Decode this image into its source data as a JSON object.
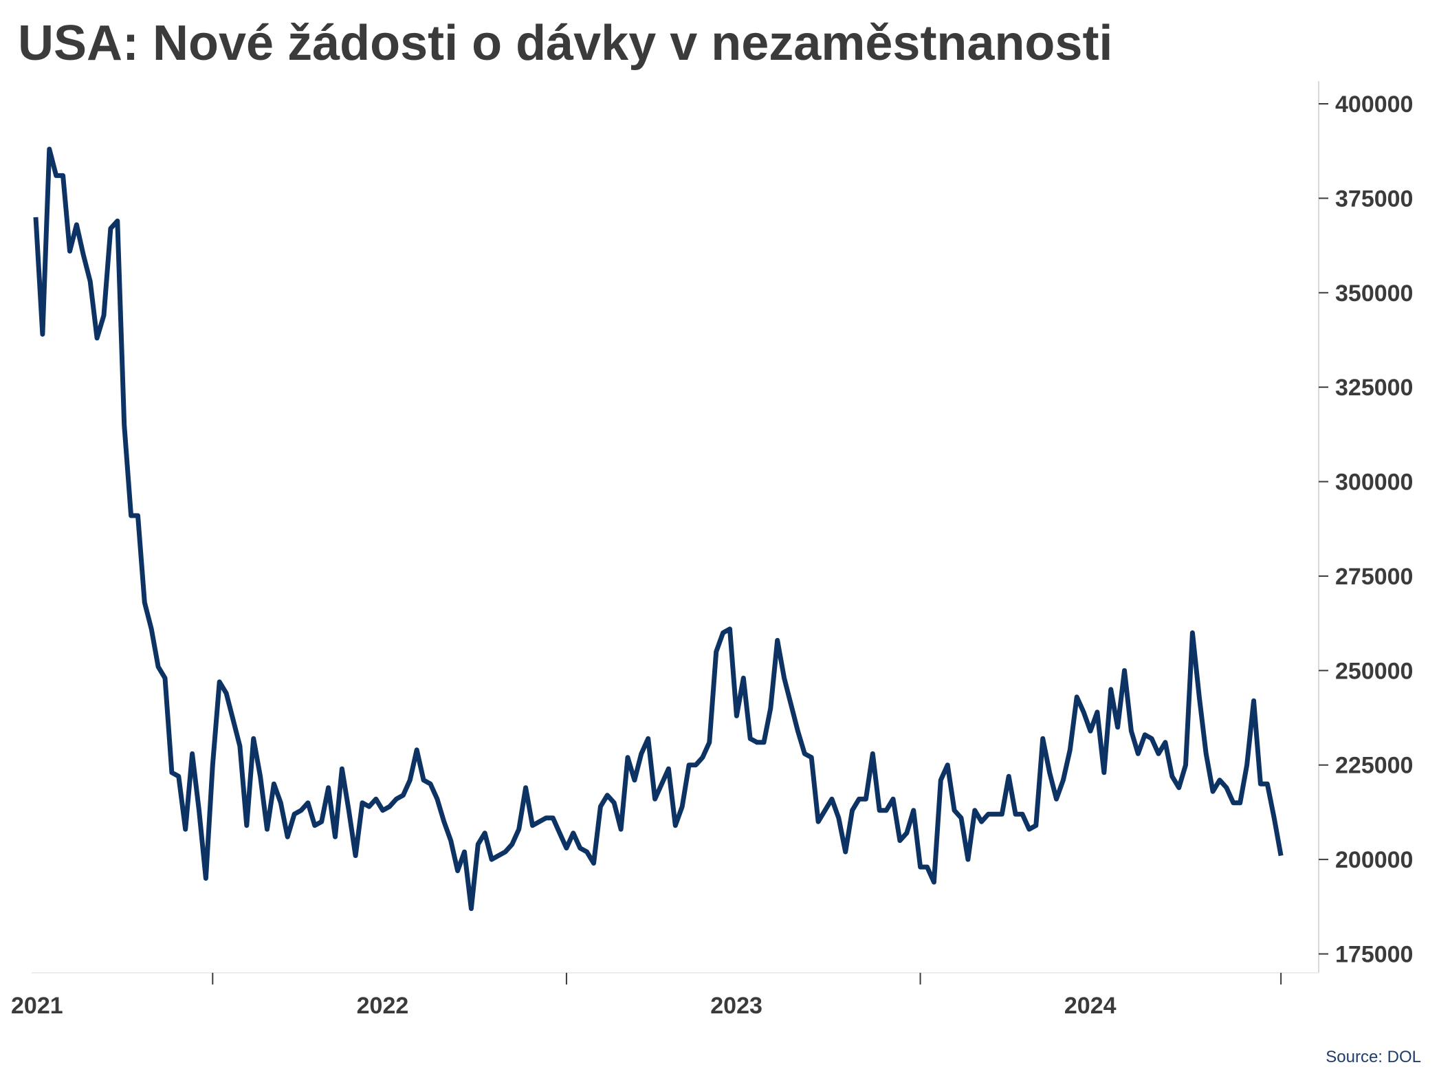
{
  "title": "USA: Nové žádosti o dávky v nezaměstnanosti",
  "source": "Source: DOL",
  "colors": {
    "line": "#0d3364",
    "text": "#3b3b3b",
    "axis": "#d9d9d9"
  },
  "chart_data": {
    "type": "line",
    "title": "USA: Nové žádosti o dávky v nezaměstnanosti",
    "xlabel": "",
    "ylabel": "",
    "y_axis_position": "right",
    "grid": false,
    "legend": "none",
    "ylim": [
      170000,
      402000
    ],
    "y_ticks": [
      175000,
      200000,
      225000,
      250000,
      275000,
      300000,
      325000,
      350000,
      375000,
      400000
    ],
    "x_tick_labels": [
      "2021",
      "2022",
      "2023",
      "2024"
    ],
    "x_range_weeks": [
      0,
      184
    ],
    "x_label_weeks": [
      0,
      52,
      104,
      156
    ],
    "x_tick_weeks": [
      26,
      78,
      130,
      183
    ],
    "series": [
      {
        "values": [
          370000,
          339000,
          388000,
          381000,
          381000,
          361000,
          368000,
          360000,
          353000,
          338000,
          344000,
          367000,
          369000,
          315000,
          291000,
          291000,
          268000,
          261000,
          251000,
          248000,
          223000,
          222000,
          208000,
          228000,
          213000,
          195000,
          225000,
          247000,
          244000,
          237000,
          230000,
          209000,
          232000,
          222000,
          208000,
          220000,
          215000,
          206000,
          212000,
          213000,
          215000,
          209000,
          210000,
          219000,
          206000,
          224000,
          213000,
          201000,
          215000,
          214000,
          216000,
          213000,
          214000,
          216000,
          217000,
          221000,
          229000,
          221000,
          220000,
          216000,
          210000,
          205000,
          197000,
          202000,
          187000,
          204000,
          207000,
          200000,
          201000,
          202000,
          204000,
          208000,
          219000,
          209000,
          210000,
          211000,
          211000,
          207000,
          203000,
          207000,
          203000,
          202000,
          199000,
          214000,
          217000,
          215000,
          208000,
          227000,
          221000,
          228000,
          232000,
          216000,
          220000,
          224000,
          209000,
          214000,
          225000,
          225000,
          227000,
          231000,
          255000,
          260000,
          261000,
          238000,
          248000,
          232000,
          231000,
          231000,
          240000,
          258000,
          248000,
          241000,
          234000,
          228000,
          227000,
          210000,
          213000,
          216000,
          211000,
          202000,
          213000,
          216000,
          216000,
          228000,
          213000,
          213000,
          216000,
          205000,
          207000,
          213000,
          198000,
          198000,
          194000,
          221000,
          225000,
          213000,
          211000,
          200000,
          213000,
          210000,
          212000,
          212000,
          212000,
          222000,
          212000,
          212000,
          208000,
          209000,
          232000,
          223000,
          216000,
          221000,
          229000,
          243000,
          239000,
          234000,
          239000,
          223000,
          245000,
          235000,
          250000,
          234000,
          228000,
          233000,
          232000,
          228000,
          231000,
          222000,
          219000,
          225000,
          260000,
          243000,
          228000,
          218000,
          221000,
          219000,
          215000,
          215000,
          225000,
          242000,
          220000,
          220000,
          211000,
          201000
        ]
      }
    ]
  }
}
